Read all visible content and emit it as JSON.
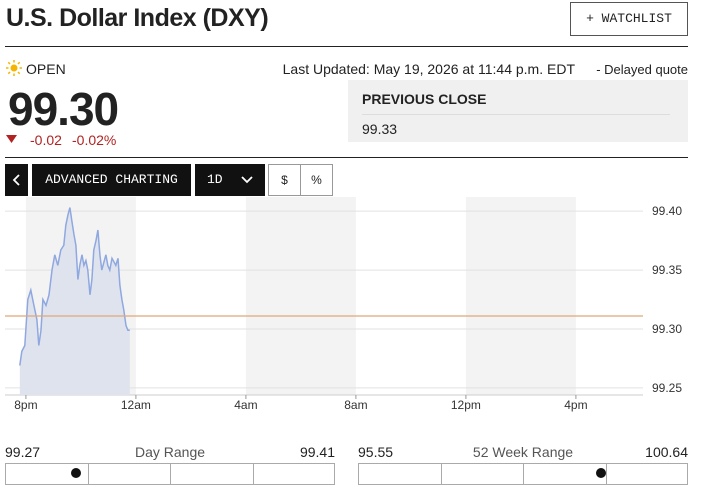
{
  "header": {
    "title": "U.S. Dollar Index (DXY)",
    "watchlist_button": "+ WATCHLIST"
  },
  "status": {
    "market_state": "OPEN",
    "last_updated": "Last Updated: May 19, 2026 at 11:44 p.m. EDT",
    "quote_type": "- Delayed quote"
  },
  "quote": {
    "price": "99.30",
    "change": "-0.02",
    "change_percent": "-0.02%"
  },
  "previous_close": {
    "label": "PREVIOUS CLOSE",
    "value": "99.33"
  },
  "toolbar": {
    "advanced_charting": "ADVANCED CHARTING",
    "interval": "1D",
    "dollar": "$",
    "percent": "%"
  },
  "chart_data": {
    "type": "line",
    "color": "#8fa8e0",
    "area_color": "#dfe3ee",
    "x": [
      -0.22,
      -0.15,
      -0.04,
      0.07,
      0.18,
      0.29,
      0.4,
      0.47,
      0.55,
      0.62,
      0.73,
      0.84,
      0.95,
      1.05,
      1.16,
      1.27,
      1.38,
      1.45,
      1.53,
      1.6,
      1.67,
      1.75,
      1.82,
      1.89,
      1.96,
      2.04,
      2.11,
      2.18,
      2.25,
      2.33,
      2.4,
      2.47,
      2.55,
      2.62,
      2.69,
      2.76,
      2.84,
      2.91,
      2.98,
      3.05,
      3.13,
      3.2,
      3.27,
      3.35,
      3.42,
      3.49,
      3.56,
      3.64,
      3.71,
      3.78
    ],
    "values": [
      99.269,
      99.281,
      99.286,
      99.325,
      99.333,
      99.32,
      99.308,
      99.286,
      99.299,
      99.325,
      99.32,
      99.329,
      99.35,
      99.363,
      99.354,
      99.367,
      99.371,
      99.388,
      99.397,
      99.403,
      99.392,
      99.38,
      99.371,
      99.342,
      99.354,
      99.363,
      99.354,
      99.358,
      99.35,
      99.329,
      99.342,
      99.367,
      99.375,
      99.384,
      99.363,
      99.35,
      99.357,
      99.363,
      99.354,
      99.35,
      99.36,
      99.357,
      99.354,
      99.36,
      99.337,
      99.325,
      99.316,
      99.303,
      99.299,
      99.299
    ],
    "xlim": [
      -0.76,
      22.44
    ],
    "xticks": [
      {
        "value": 0,
        "label": "8pm"
      },
      {
        "value": 4,
        "label": "12am"
      },
      {
        "value": 8,
        "label": "4am"
      },
      {
        "value": 12,
        "label": "8am"
      },
      {
        "value": 16,
        "label": "12pm"
      },
      {
        "value": 20,
        "label": "4pm"
      }
    ],
    "ylim": [
      99.244,
      99.412
    ],
    "yticks": [
      {
        "value": 99.25,
        "label": "99.25"
      },
      {
        "value": 99.3,
        "label": "99.30"
      },
      {
        "value": 99.35,
        "label": "99.35"
      },
      {
        "value": 99.4,
        "label": "99.40"
      }
    ],
    "grid": true,
    "reference_line": {
      "value": 99.311,
      "color": "#e0a878"
    }
  },
  "ranges": [
    {
      "low": "99.27",
      "label": "Day Range",
      "high": "99.41"
    },
    {
      "low": "95.55",
      "label": "52 Week Range",
      "high": "100.64"
    }
  ]
}
